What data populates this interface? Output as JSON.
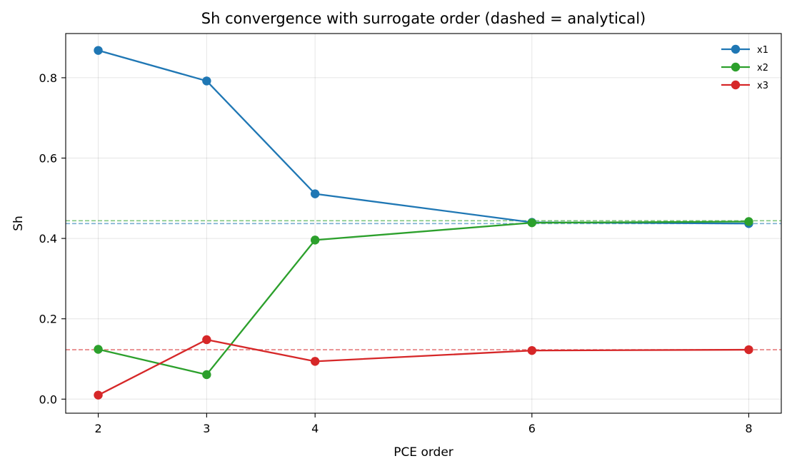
{
  "chart_data": {
    "type": "line",
    "title": "Sh convergence with surrogate order (dashed = analytical)",
    "xlabel": "PCE order",
    "ylabel": "Sh",
    "x": [
      2,
      3,
      4,
      6,
      8
    ],
    "xticks": [
      2,
      3,
      4,
      6,
      8
    ],
    "xlim": [
      1.7,
      8.3
    ],
    "ylim": [
      -0.035,
      0.91
    ],
    "yticks": [
      0.0,
      0.2,
      0.4,
      0.6,
      0.8
    ],
    "ytick_labels": [
      "0.0",
      "0.2",
      "0.4",
      "0.6",
      "0.8"
    ],
    "grid": true,
    "legend": "top-right",
    "series": [
      {
        "name": "x1",
        "color": "#1f77b4",
        "values": [
          0.868,
          0.792,
          0.511,
          0.44,
          0.437
        ],
        "analytical": 0.437
      },
      {
        "name": "x2",
        "color": "#2ca02c",
        "values": [
          0.124,
          0.061,
          0.396,
          0.439,
          0.442
        ],
        "analytical": 0.444
      },
      {
        "name": "x3",
        "color": "#d62728",
        "values": [
          0.01,
          0.148,
          0.094,
          0.121,
          0.123
        ],
        "analytical": 0.123
      }
    ]
  }
}
